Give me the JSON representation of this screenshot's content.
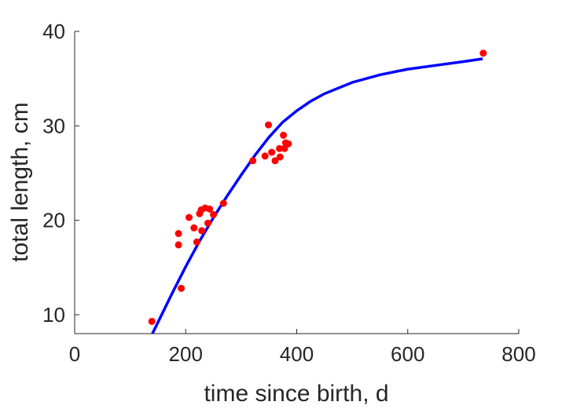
{
  "chart_data": {
    "type": "scatter",
    "title": "",
    "xlabel": "time since birth, d",
    "ylabel": "total length, cm",
    "xlim": [
      0,
      800
    ],
    "ylim": [
      8,
      40
    ],
    "x_ticks": [
      0,
      200,
      400,
      600,
      800
    ],
    "y_ticks": [
      10,
      20,
      30,
      40
    ],
    "grid": false,
    "legend": "none",
    "series": [
      {
        "kind": "points",
        "color": "#ff0000",
        "points": [
          {
            "x": 139,
            "y": 9.3
          },
          {
            "x": 187,
            "y": 18.6
          },
          {
            "x": 187,
            "y": 17.4
          },
          {
            "x": 192,
            "y": 12.8
          },
          {
            "x": 206,
            "y": 20.3
          },
          {
            "x": 215,
            "y": 19.2
          },
          {
            "x": 220,
            "y": 17.7
          },
          {
            "x": 225,
            "y": 20.7
          },
          {
            "x": 228,
            "y": 21.1
          },
          {
            "x": 229,
            "y": 18.9
          },
          {
            "x": 235,
            "y": 21.3
          },
          {
            "x": 240,
            "y": 19.7
          },
          {
            "x": 243,
            "y": 21.2
          },
          {
            "x": 250,
            "y": 20.6
          },
          {
            "x": 268,
            "y": 21.8
          },
          {
            "x": 321,
            "y": 26.3
          },
          {
            "x": 343,
            "y": 26.8
          },
          {
            "x": 349,
            "y": 30.1
          },
          {
            "x": 355,
            "y": 27.2
          },
          {
            "x": 361,
            "y": 26.3
          },
          {
            "x": 369,
            "y": 27.6
          },
          {
            "x": 370,
            "y": 26.7
          },
          {
            "x": 376,
            "y": 29.0
          },
          {
            "x": 378,
            "y": 27.6
          },
          {
            "x": 380,
            "y": 28.2
          },
          {
            "x": 385,
            "y": 28.1
          },
          {
            "x": 736,
            "y": 37.7
          }
        ]
      },
      {
        "kind": "curve",
        "color": "#0000ff",
        "points": [
          {
            "x": 140,
            "y": 8.0
          },
          {
            "x": 175,
            "y": 12.2
          },
          {
            "x": 200,
            "y": 15.1
          },
          {
            "x": 225,
            "y": 17.8
          },
          {
            "x": 250,
            "y": 20.3
          },
          {
            "x": 275,
            "y": 22.6
          },
          {
            "x": 300,
            "y": 24.8
          },
          {
            "x": 325,
            "y": 26.9
          },
          {
            "x": 350,
            "y": 28.8
          },
          {
            "x": 375,
            "y": 30.4
          },
          {
            "x": 400,
            "y": 31.6
          },
          {
            "x": 425,
            "y": 32.6
          },
          {
            "x": 450,
            "y": 33.4
          },
          {
            "x": 500,
            "y": 34.6
          },
          {
            "x": 550,
            "y": 35.4
          },
          {
            "x": 600,
            "y": 36.0
          },
          {
            "x": 650,
            "y": 36.4
          },
          {
            "x": 700,
            "y": 36.8
          },
          {
            "x": 735,
            "y": 37.1
          }
        ]
      }
    ]
  }
}
